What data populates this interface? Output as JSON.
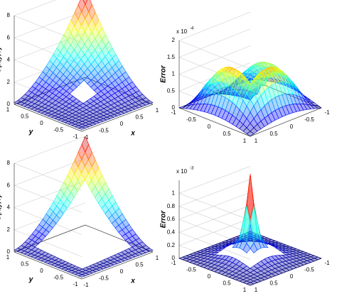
{
  "chart_data": [
    {
      "type": "surface",
      "zlabel": "U(x,y,T)",
      "xlabel": "x",
      "ylabel": "y",
      "xlim": [
        -1,
        1
      ],
      "ylim": [
        -1,
        1
      ],
      "zlim": [
        0,
        8
      ],
      "xticks": [
        -1,
        -0.5,
        0,
        0.5,
        1
      ],
      "yticks": [
        -1,
        -0.5,
        0,
        0.5,
        1
      ],
      "zticks": [
        0,
        2,
        4,
        6,
        8
      ],
      "grid": true
    },
    {
      "type": "surface",
      "zlabel": "Error",
      "z_multiplier": "x 10",
      "z_exponent": "-4",
      "xlim": [
        -1,
        1
      ],
      "ylim": [
        -1,
        1
      ],
      "zlim": [
        0,
        2
      ],
      "xticks": [
        -1,
        -0.5,
        0,
        0.5,
        1
      ],
      "yticks": [
        -1,
        -0.5,
        0,
        0.5,
        1
      ],
      "zticks": [
        0,
        0.5,
        1,
        1.5,
        2
      ],
      "grid": true
    },
    {
      "type": "surface",
      "zlabel": "U(x,y,T)",
      "xlabel": "x",
      "ylabel": "y",
      "xlim": [
        -1,
        1
      ],
      "ylim": [
        -1,
        1
      ],
      "zlim": [
        0,
        8
      ],
      "xticks": [
        -1,
        -0.5,
        0,
        0.5,
        1
      ],
      "yticks": [
        -1,
        -0.5,
        0,
        0.5,
        1
      ],
      "zticks": [
        0,
        2,
        4,
        6,
        8
      ],
      "grid": true
    },
    {
      "type": "surface",
      "zlabel": "Error",
      "z_multiplier": "x 10",
      "z_exponent": "-3",
      "xlim": [
        -1,
        1
      ],
      "ylim": [
        -1,
        1
      ],
      "zlim": [
        0,
        1.2
      ],
      "xticks": [
        -1,
        -0.5,
        0,
        0.5,
        1
      ],
      "yticks": [
        -1,
        -0.5,
        0,
        0.5,
        1
      ],
      "zticks": [
        0,
        0.2,
        0.4,
        0.6,
        0.8,
        1
      ],
      "grid": true
    }
  ]
}
